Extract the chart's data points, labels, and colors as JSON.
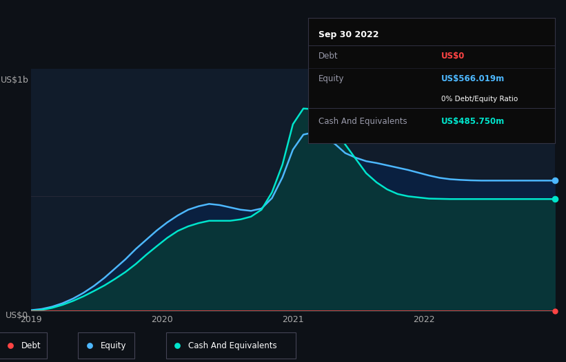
{
  "bg_color": "#0d1117",
  "chart_bg_color": "#111c2b",
  "title_y_label": "US$1b",
  "title_y_label_0": "US$0",
  "x_tick_positions": [
    0.0,
    1.0,
    2.0,
    3.0
  ],
  "x_ticks": [
    "2019",
    "2020",
    "2021",
    "2022"
  ],
  "y_max": 1.05,
  "debt_color": "#ff4444",
  "equity_color": "#4db8ff",
  "cash_color": "#00e5cc",
  "equity_fill_color": "#0a2040",
  "cash_fill_color": "#083838",
  "tooltip_bg": "#0a0a0a",
  "tooltip_title": "Sep 30 2022",
  "tooltip_debt_label": "Debt",
  "tooltip_debt_value": "US$0",
  "tooltip_equity_label": "Equity",
  "tooltip_equity_value": "US$566.019m",
  "tooltip_ratio": "0% Debt/Equity Ratio",
  "tooltip_cash_label": "Cash And Equivalents",
  "tooltip_cash_value": "US$485.750m",
  "x_data": [
    0.0,
    0.08,
    0.16,
    0.24,
    0.32,
    0.4,
    0.48,
    0.56,
    0.64,
    0.72,
    0.8,
    0.88,
    0.96,
    1.04,
    1.12,
    1.2,
    1.28,
    1.36,
    1.44,
    1.52,
    1.6,
    1.68,
    1.76,
    1.84,
    1.92,
    2.0,
    2.08,
    2.16,
    2.24,
    2.32,
    2.4,
    2.48,
    2.56,
    2.64,
    2.72,
    2.8,
    2.88,
    2.96,
    3.04,
    3.12,
    3.2,
    3.28,
    3.36,
    3.44,
    3.52,
    3.6,
    3.68,
    3.76,
    3.84,
    3.92,
    4.0
  ],
  "equity_data": [
    0.005,
    0.01,
    0.02,
    0.035,
    0.055,
    0.08,
    0.11,
    0.145,
    0.185,
    0.225,
    0.27,
    0.31,
    0.35,
    0.385,
    0.415,
    0.44,
    0.455,
    0.465,
    0.46,
    0.45,
    0.44,
    0.435,
    0.445,
    0.49,
    0.58,
    0.7,
    0.765,
    0.775,
    0.755,
    0.725,
    0.685,
    0.665,
    0.65,
    0.642,
    0.632,
    0.622,
    0.612,
    0.6,
    0.588,
    0.578,
    0.572,
    0.569,
    0.567,
    0.566,
    0.566,
    0.566,
    0.566,
    0.566,
    0.566,
    0.566,
    0.566
  ],
  "cash_data": [
    0.002,
    0.006,
    0.015,
    0.028,
    0.045,
    0.065,
    0.088,
    0.112,
    0.14,
    0.17,
    0.205,
    0.245,
    0.282,
    0.318,
    0.348,
    0.368,
    0.382,
    0.392,
    0.392,
    0.392,
    0.398,
    0.41,
    0.44,
    0.515,
    0.635,
    0.81,
    0.878,
    0.875,
    0.845,
    0.792,
    0.722,
    0.66,
    0.598,
    0.558,
    0.528,
    0.508,
    0.498,
    0.493,
    0.488,
    0.487,
    0.486,
    0.486,
    0.486,
    0.486,
    0.486,
    0.486,
    0.486,
    0.486,
    0.486,
    0.486,
    0.486
  ],
  "debt_data": [
    0.001,
    0.001,
    0.001,
    0.001,
    0.001,
    0.001,
    0.001,
    0.001,
    0.001,
    0.001,
    0.001,
    0.001,
    0.001,
    0.001,
    0.001,
    0.001,
    0.001,
    0.001,
    0.001,
    0.001,
    0.001,
    0.001,
    0.001,
    0.001,
    0.001,
    0.001,
    0.001,
    0.001,
    0.001,
    0.001,
    0.001,
    0.001,
    0.001,
    0.001,
    0.001,
    0.001,
    0.001,
    0.001,
    0.001,
    0.001,
    0.001,
    0.001,
    0.001,
    0.001,
    0.001,
    0.001,
    0.001,
    0.001,
    0.001,
    0.001,
    0.001
  ]
}
